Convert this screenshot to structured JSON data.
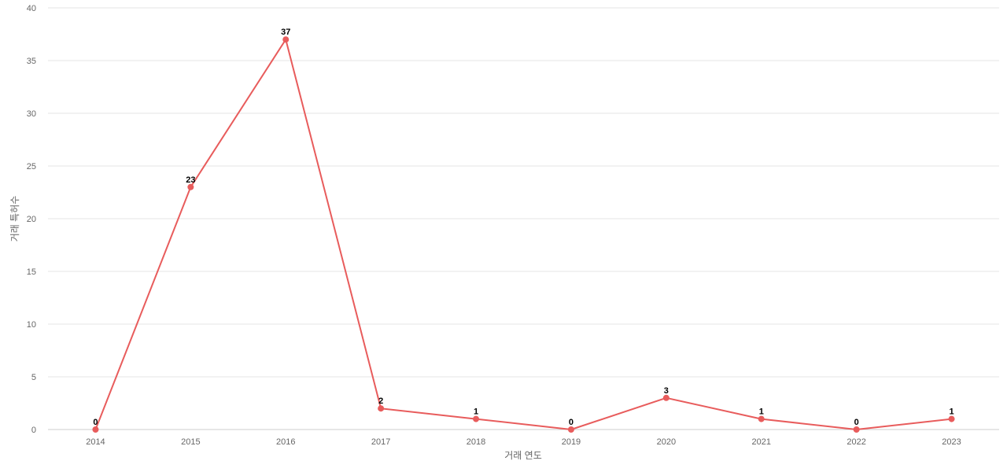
{
  "chart_data": {
    "type": "line",
    "categories": [
      "2014",
      "2015",
      "2016",
      "2017",
      "2018",
      "2019",
      "2020",
      "2021",
      "2022",
      "2023"
    ],
    "series": [
      {
        "values": [
          0,
          23,
          37,
          2,
          1,
          0,
          3,
          1,
          0,
          1
        ],
        "color": "#e85c5c"
      }
    ],
    "xlabel": "거래 연도",
    "ylabel": "거래 특허수",
    "ylim": [
      0,
      40
    ],
    "yticks": [
      0,
      5,
      10,
      15,
      20,
      25,
      30,
      35,
      40
    ],
    "grid": true,
    "data_labels": true,
    "legend": "none"
  }
}
